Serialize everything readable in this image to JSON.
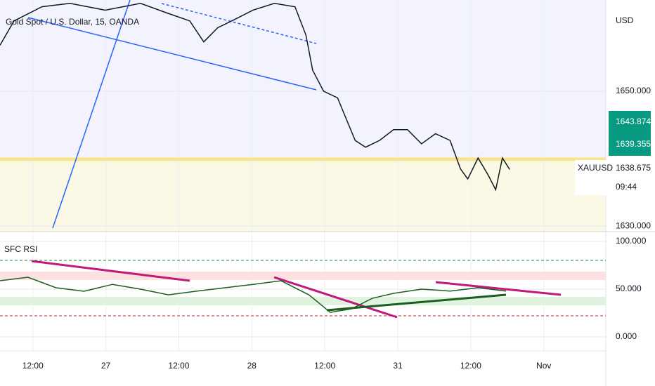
{
  "chart_data": [
    {
      "type": "line",
      "title": "Gold Spot / U.S. Dollar, 15, OANDA",
      "y_axis_label": "USD",
      "xlim": [
        6.6,
        106.2
      ],
      "ylim": [
        1629.2,
        1663.5
      ],
      "yticks": [
        {
          "value": 1630,
          "label": "1630.000"
        },
        {
          "value": 1650,
          "label": "1650.000"
        }
      ],
      "grid": true,
      "price_labels": [
        {
          "value": 1643.874,
          "label": "1643.874"
        },
        {
          "value": 1639.355,
          "label": "1639.355"
        },
        {
          "value": 1638.675,
          "label": "1638.675"
        }
      ],
      "annotations": [
        "XAUUSD",
        "09:44"
      ],
      "series": [
        {
          "color": "#131722",
          "x": [
            6.6,
            8.9,
            13.5,
            18.1,
            23.9,
            29.7,
            34.3,
            37.8,
            40.1,
            42.4,
            44.7,
            48.2,
            51.7,
            55.1,
            56.9,
            58.0,
            59.8,
            62.1,
            63.8,
            65.0,
            66.7,
            69.0,
            71.3,
            73.6,
            75.9,
            78.2,
            80.6,
            82.3,
            83.5,
            85.2,
            86.9,
            88.1,
            89.2,
            90.4
          ],
          "values": [
            1656.8,
            1660.4,
            1662.5,
            1663.0,
            1662.0,
            1663.0,
            1661.5,
            1660.4,
            1657.3,
            1659.4,
            1660.4,
            1662.0,
            1663.0,
            1662.5,
            1658.3,
            1653.1,
            1650.0,
            1649.0,
            1645.3,
            1642.7,
            1641.7,
            1642.7,
            1644.3,
            1644.3,
            1642.2,
            1643.7,
            1642.7,
            1638.5,
            1637.0,
            1640.1,
            1637.5,
            1635.4,
            1640.1,
            1638.4
          ]
        }
      ]
    },
    {
      "type": "line",
      "title": "SFC RSI",
      "xlim": [
        6.6,
        106.2
      ],
      "ylim": [
        -14.7,
        110.3
      ],
      "yticks": [
        {
          "value": 0,
          "label": "0.000"
        },
        {
          "value": 50,
          "label": "50.000"
        },
        {
          "value": 100,
          "label": "100.000"
        }
      ],
      "xticks": [
        {
          "value": 12,
          "label": "12:00"
        },
        {
          "value": 24,
          "label": "27"
        },
        {
          "value": 36,
          "label": "12:00"
        },
        {
          "value": 48,
          "label": "28"
        },
        {
          "value": 60,
          "label": "12:00"
        },
        {
          "value": 72,
          "label": "31"
        },
        {
          "value": 84,
          "label": "12:00"
        },
        {
          "value": 96,
          "label": "Nov"
        }
      ],
      "grid": true,
      "series": [
        {
          "color": "#1b5e20",
          "x": [
            6.6,
            11.2,
            15.8,
            20.4,
            25.1,
            29.7,
            34.3,
            39.0,
            43.6,
            48.2,
            52.8,
            57.4,
            60.9,
            64.4,
            67.8,
            71.3,
            75.9,
            80.6,
            85.2,
            89.8
          ],
          "values": [
            58.8,
            62.5,
            51.5,
            47.8,
            55,
            50,
            44,
            48,
            51.5,
            55,
            58.8,
            44,
            25.7,
            29.4,
            40.4,
            45.6,
            50,
            48,
            51.5,
            48
          ]
        }
      ]
    }
  ]
}
